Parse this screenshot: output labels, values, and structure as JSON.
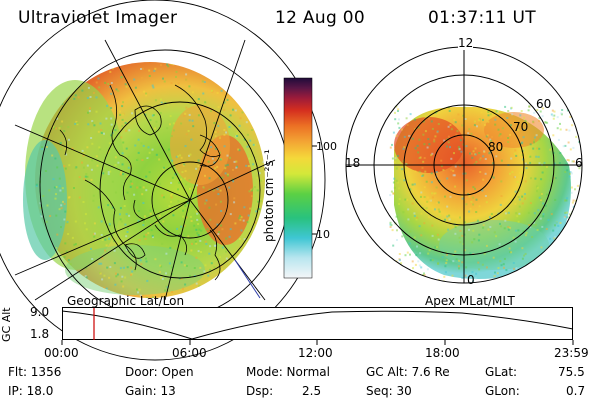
{
  "header": {
    "instrument": "Ultraviolet Imager",
    "date": "12 Aug 00",
    "time": "01:37:11  UT"
  },
  "colorbar": {
    "unit_label": "photon cm⁻²s⁻¹",
    "ticks": [
      "100",
      "10"
    ]
  },
  "polar_plot": {
    "mlt_labels": [
      "12",
      "18",
      "6",
      "0"
    ],
    "lat_labels": [
      "60",
      "70",
      "80"
    ]
  },
  "map_labels": {
    "left": "Geographic Lat/Lon",
    "right": "Apex MLat/MLT"
  },
  "altitude_strip": {
    "axis_label": "GC Alt",
    "y_ticks": [
      "9.0",
      "1.8"
    ],
    "x_ticks": [
      "00:00",
      "06:00",
      "12:00",
      "18:00",
      "23:59"
    ],
    "cursor_time": "01:37"
  },
  "info": {
    "flt": "Flt:  1356",
    "door": "Door:  Open",
    "mode": "Mode:  Normal",
    "gcalt": "GC Alt:  7.6 Re",
    "glat_label": "GLat:",
    "glat_value": "75.5",
    "ip": "IP:  18.0",
    "gain": "Gain:  13",
    "dsp_label": "Dsp:",
    "dsp_value": "2.5",
    "seq": "Seq:  30",
    "glon_label": "GLon:",
    "glon_value": "0.7"
  },
  "colors": {
    "cursor": "#cc0000"
  }
}
